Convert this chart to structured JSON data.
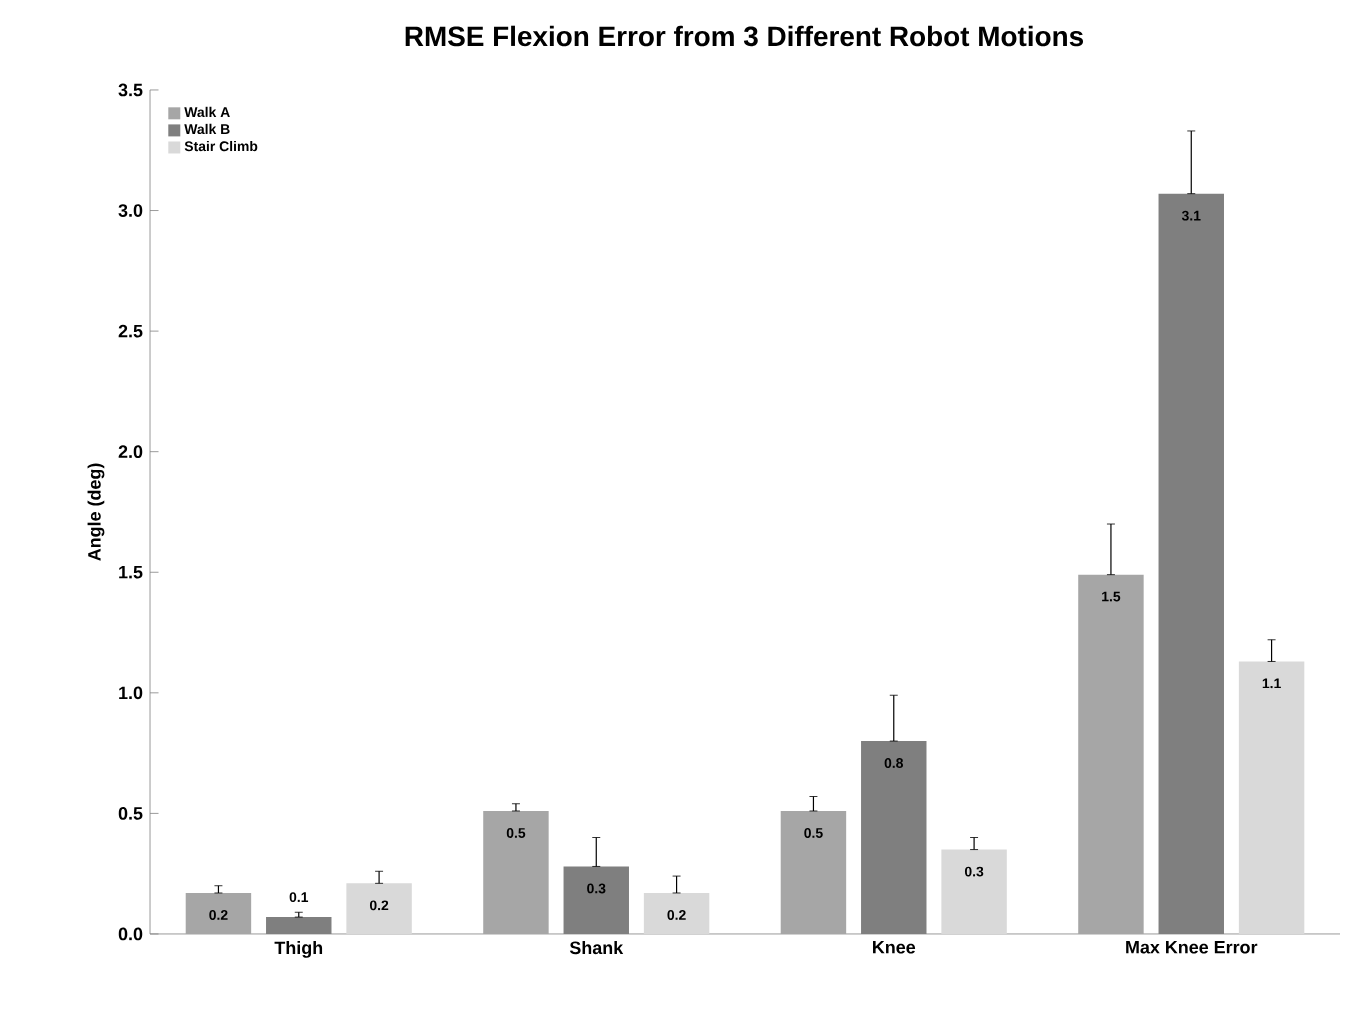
{
  "chart_data": {
    "type": "bar",
    "title": "RMSE Flexion Error from 3 Different Robot Motions",
    "ylabel": "Angle (deg)",
    "categories": [
      "Thigh",
      "Shank",
      "Knee",
      "Max Knee Error"
    ],
    "series": [
      {
        "name": "Walk A",
        "color": "#a6a6a6",
        "values": [
          0.17,
          0.51,
          0.51,
          1.49
        ],
        "errors": [
          [
            0.17,
            0.2
          ],
          [
            0.51,
            0.54
          ],
          [
            0.51,
            0.57
          ],
          [
            1.49,
            1.7
          ]
        ],
        "value_labels": [
          "0.2",
          "0.5",
          "0.5",
          "1.5"
        ]
      },
      {
        "name": "Walk B",
        "color": "#7f7f7f",
        "values": [
          0.07,
          0.28,
          0.8,
          3.07
        ],
        "errors": [
          [
            0.07,
            0.09
          ],
          [
            0.28,
            0.4
          ],
          [
            0.8,
            0.99
          ],
          [
            3.07,
            3.33
          ]
        ],
        "value_labels": [
          "0.1",
          "0.3",
          "0.8",
          "3.1"
        ]
      },
      {
        "name": "Stair Climb",
        "color": "#d9d9d9",
        "values": [
          0.21,
          0.17,
          0.35,
          1.13
        ],
        "errors": [
          [
            0.21,
            0.26
          ],
          [
            0.17,
            0.24
          ],
          [
            0.35,
            0.4
          ],
          [
            1.13,
            1.22
          ]
        ],
        "value_labels": [
          "0.2",
          "0.2",
          "0.3",
          "1.1"
        ]
      }
    ],
    "ylim": [
      0,
      3.5
    ],
    "yticks": [
      {
        "value": 0,
        "label": "0.0"
      },
      {
        "value": 0.5,
        "label": "0.5"
      },
      {
        "value": 1,
        "label": "1.0"
      },
      {
        "value": 1.5,
        "label": "1.5"
      },
      {
        "value": 2,
        "label": "2.0"
      },
      {
        "value": 2.5,
        "label": "2.5"
      },
      {
        "value": 3,
        "label": "3.0"
      },
      {
        "value": 3.5,
        "label": "3.5"
      }
    ],
    "legend": "top left",
    "grid": false
  }
}
